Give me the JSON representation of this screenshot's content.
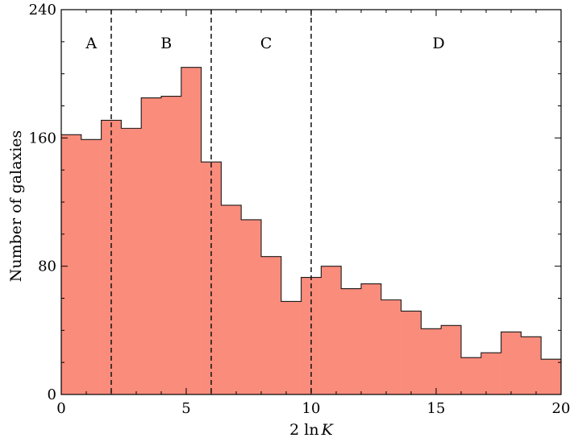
{
  "chart_data": {
    "type": "bar",
    "subtype": "histogram",
    "xlabel_prefix": "2 ln",
    "xlabel_var": "K",
    "ylabel": "Number of galaxies",
    "xlim": [
      0,
      20
    ],
    "ylim": [
      0,
      240
    ],
    "xticks": [
      0,
      5,
      10,
      15,
      20
    ],
    "yticks": [
      0,
      80,
      160,
      240
    ],
    "fill_color": "#fa8c7c",
    "bin_edges": [
      0,
      0.8,
      1.6,
      2.4,
      3.2,
      4.0,
      4.8,
      5.6,
      6.4,
      7.2,
      8.0,
      8.8,
      9.6,
      10.4,
      11.2,
      12.0,
      12.8,
      13.6,
      14.4,
      15.2,
      16.0,
      16.8,
      17.6,
      18.4,
      19.2,
      20.0
    ],
    "counts": [
      162,
      159,
      171,
      166,
      185,
      186,
      204,
      145,
      118,
      109,
      86,
      58,
      73,
      80,
      66,
      69,
      59,
      52,
      41,
      43,
      23,
      26,
      39,
      36,
      22
    ],
    "dividers": [
      2,
      6,
      10
    ],
    "regions": [
      {
        "label": "A",
        "x": 1.2
      },
      {
        "label": "B",
        "x": 4.2
      },
      {
        "label": "C",
        "x": 8.2
      },
      {
        "label": "D",
        "x": 15.1
      }
    ]
  }
}
